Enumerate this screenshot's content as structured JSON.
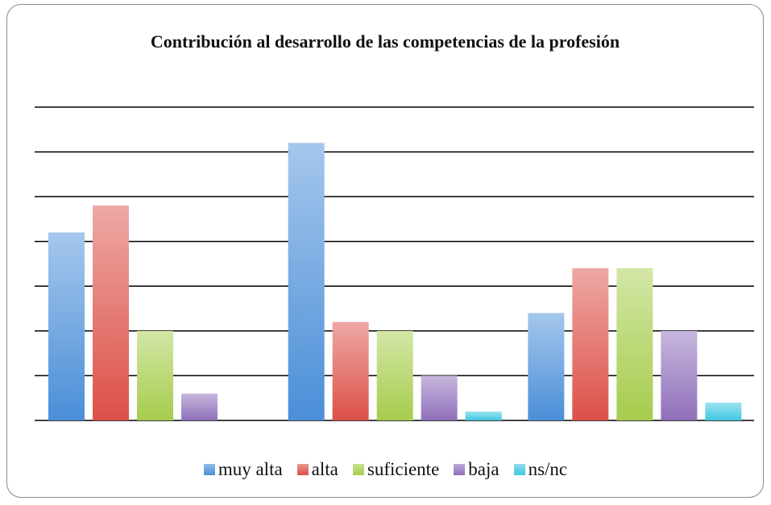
{
  "chart_data": {
    "type": "bar",
    "title": "Contribución al desarrollo de las competencias de la profesión",
    "categories": [
      null,
      null,
      null
    ],
    "series": [
      {
        "name": "muy alta",
        "color": "#4a8ed8",
        "values": [
          4.2,
          6.2,
          2.4
        ]
      },
      {
        "name": "alta",
        "color": "#dc5048",
        "values": [
          4.8,
          2.2,
          3.4
        ]
      },
      {
        "name": "suficiente",
        "color": "#a6cc4c",
        "values": [
          2,
          2,
          3.4
        ]
      },
      {
        "name": "baja",
        "color": "#8f6fba",
        "values": [
          0.6,
          1,
          2
        ]
      },
      {
        "name": "ns/nc",
        "color": "#3fc6e0",
        "values": [
          0,
          0.2,
          0.4
        ]
      }
    ],
    "ylim": [
      0,
      7
    ],
    "yticks": [
      0,
      1,
      2,
      3,
      4,
      5,
      6,
      7
    ],
    "grid": true,
    "legend": "bottom"
  }
}
